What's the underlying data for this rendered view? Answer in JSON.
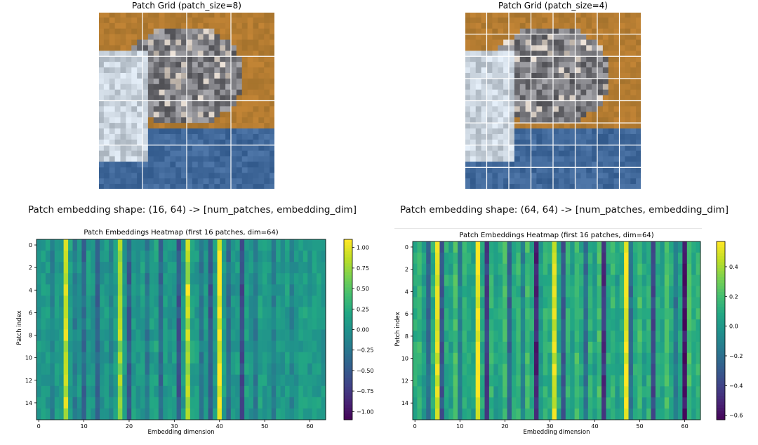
{
  "top_left": {
    "title": "Patch Grid (patch_size=8)",
    "shape_text": "Patch embedding shape: (16, 64)  -> [num_patches, embedding_dim]",
    "grid_divisions": 4
  },
  "top_right": {
    "title": "Patch Grid (patch_size=4)",
    "shape_text": "Patch embedding shape: (64, 64)  -> [num_patches, embedding_dim]",
    "grid_divisions": 8
  },
  "colors": {
    "image_sky": "#b07a2a",
    "image_ground": "#3a6596",
    "grid_line": "#ffffff"
  },
  "chart_data": [
    {
      "type": "heatmap",
      "title": "Patch Embeddings Heatmap (first 16 patches, dim=64)",
      "xlabel": "Embedding dimension",
      "ylabel": "Patch index",
      "rows": 16,
      "cols": 64,
      "x_ticks": [
        0,
        10,
        20,
        30,
        40,
        50,
        60
      ],
      "y_ticks": [
        0,
        2,
        4,
        6,
        8,
        10,
        12,
        14
      ],
      "vmin": -1.1,
      "vmax": 1.1,
      "colorbar_ticks": [
        -1.0,
        -0.75,
        -0.5,
        -0.25,
        0.0,
        0.25,
        0.5,
        0.75,
        1.0
      ],
      "colorbar_tick_labels": [
        "−1.00",
        "−0.75",
        "−0.50",
        "−0.25",
        "0.00",
        "0.25",
        "0.50",
        "0.75",
        "1.00"
      ],
      "column_means": [
        0.05,
        0.12,
        0.08,
        -0.12,
        0.1,
        0.05,
        0.9,
        0.15,
        -0.15,
        0.05,
        -0.35,
        0.1,
        0.05,
        -0.4,
        0.05,
        0.1,
        -0.1,
        0.15,
        0.75,
        0.1,
        -0.45,
        0.1,
        0.05,
        0.12,
        -0.2,
        0.1,
        0.15,
        -0.35,
        0.12,
        0.05,
        0.1,
        -0.5,
        0.1,
        0.85,
        0.15,
        0.1,
        -0.2,
        0.12,
        -0.5,
        0.1,
        1.05,
        0.15,
        -0.3,
        0.05,
        0.1,
        -0.6,
        0.12,
        0.05,
        -0.2,
        0.15,
        0.1,
        0.05,
        -0.15,
        0.1,
        0.05,
        0.12,
        -0.1,
        0.05,
        0.1,
        0.15,
        0.05,
        0.1,
        0.12,
        0.05
      ],
      "bright_rows": [
        4,
        8
      ]
    },
    {
      "type": "heatmap",
      "title": "Patch Embeddings Heatmap (first 16 patches, dim=64)",
      "xlabel": "Embedding dimension",
      "ylabel": "Patch index",
      "rows": 16,
      "cols": 64,
      "x_ticks": [
        0,
        10,
        20,
        30,
        40,
        50,
        60
      ],
      "y_ticks": [
        0,
        2,
        4,
        6,
        8,
        10,
        12,
        14
      ],
      "vmin": -0.63,
      "vmax": 0.57,
      "colorbar_ticks": [
        -0.6,
        -0.4,
        -0.2,
        0.0,
        0.2,
        0.4
      ],
      "colorbar_tick_labels": [
        "−0.6",
        "−0.4",
        "−0.2",
        "0.0",
        "0.2",
        "0.4"
      ],
      "column_means": [
        0.1,
        0.15,
        0.05,
        -0.2,
        0.12,
        0.5,
        -0.3,
        0.1,
        0.05,
        0.2,
        -0.1,
        0.15,
        0.1,
        0.05,
        0.55,
        0.1,
        -0.4,
        0.15,
        0.05,
        0.1,
        0.2,
        -0.25,
        0.1,
        0.15,
        -0.1,
        0.2,
        0.1,
        -0.5,
        0.05,
        0.15,
        0.1,
        0.5,
        0.1,
        -0.3,
        0.15,
        0.05,
        0.2,
        0.1,
        -0.2,
        0.15,
        0.05,
        0.2,
        -0.45,
        0.1,
        0.15,
        0.05,
        0.1,
        0.55,
        -0.2,
        0.1,
        0.2,
        0.05,
        0.15,
        -0.35,
        0.1,
        0.05,
        0.2,
        0.1,
        -0.15,
        0.05,
        -0.55,
        0.2,
        0.1,
        0.15
      ],
      "bright_rows": []
    }
  ]
}
